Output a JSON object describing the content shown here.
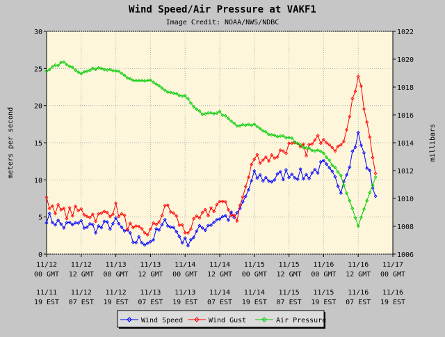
{
  "chart_data": {
    "type": "line",
    "title": "Wind Speed/Air Pressure at VAKF1",
    "subtitle": "Image Credit: NOAA/NWS/NDBC",
    "ylabel_left": "meters per second",
    "ylabel_right": "millibars",
    "left_axis": {
      "min": 0,
      "max": 30,
      "ticks": [
        "0",
        "5",
        "10",
        "15",
        "20",
        "25",
        "30"
      ]
    },
    "right_axis": {
      "min": 1006,
      "max": 1022,
      "ticks": [
        "1006",
        "1008",
        "1010",
        "1012",
        "1014",
        "1016",
        "1018",
        "1020",
        "1022"
      ]
    },
    "x_axis": {
      "start": "2023-11-12T00:00Z",
      "end": "2023-11-17T00:00Z",
      "ticks_gmt": [
        [
          "11/12",
          "00 GMT"
        ],
        [
          "11/12",
          "12 GMT"
        ],
        [
          "11/13",
          "00 GMT"
        ],
        [
          "11/13",
          "12 GMT"
        ],
        [
          "11/14",
          "00 GMT"
        ],
        [
          "11/14",
          "12 GMT"
        ],
        [
          "11/15",
          "00 GMT"
        ],
        [
          "11/15",
          "12 GMT"
        ],
        [
          "11/16",
          "00 GMT"
        ],
        [
          "11/16",
          "12 GMT"
        ],
        [
          "11/17",
          "00 GMT"
        ]
      ],
      "ticks_est": [
        [
          "11/11",
          "19 EST"
        ],
        [
          "11/12",
          "07 EST"
        ],
        [
          "11/12",
          "19 EST"
        ],
        [
          "11/13",
          "07 EST"
        ],
        [
          "11/13",
          "19 EST"
        ],
        [
          "11/14",
          "07 EST"
        ],
        [
          "11/14",
          "19 EST"
        ],
        [
          "11/15",
          "07 EST"
        ],
        [
          "11/15",
          "19 EST"
        ],
        [
          "11/16",
          "07 EST"
        ],
        [
          "11/16",
          "19 EST"
        ]
      ]
    },
    "grid": true,
    "legend_position": "bottom",
    "series": [
      {
        "name": "Wind Speed",
        "axis": "left",
        "color": "#0000ff",
        "x": [
          "11/12 00Z",
          "11/12 06Z",
          "11/12 12Z",
          "11/12 18Z",
          "11/13 00Z",
          "11/13 06Z",
          "11/13 12Z",
          "11/13 18Z",
          "11/14 00Z",
          "11/14 06Z",
          "11/14 12Z",
          "11/14 18Z",
          "11/15 00Z",
          "11/15 06Z",
          "11/15 12Z",
          "11/15 18Z",
          "11/16 00Z",
          "11/16 06Z",
          "11/16 12Z",
          "11/16 18Z"
        ],
        "values": [
          5,
          3.8,
          4,
          3.5,
          4.2,
          1.8,
          1.8,
          4.5,
          1.5,
          3.5,
          5,
          5,
          10.5,
          10,
          11,
          10.5,
          12,
          9,
          16,
          8
        ]
      },
      {
        "name": "Wind Gust",
        "axis": "left",
        "color": "#ff0000",
        "x": [
          "11/12 00Z",
          "11/12 06Z",
          "11/12 12Z",
          "11/12 18Z",
          "11/13 00Z",
          "11/13 06Z",
          "11/13 12Z",
          "11/13 18Z",
          "11/14 00Z",
          "11/14 06Z",
          "11/14 12Z",
          "11/14 18Z",
          "11/15 00Z",
          "11/15 06Z",
          "11/15 12Z",
          "11/15 18Z",
          "11/16 00Z",
          "11/16 06Z",
          "11/16 12Z",
          "11/16 18Z"
        ],
        "values": [
          7,
          5.5,
          5.8,
          5,
          6.2,
          3,
          3,
          6.5,
          3,
          5,
          7,
          5,
          13,
          13,
          14.5,
          14,
          16,
          14,
          24,
          11
        ]
      },
      {
        "name": "Air Pressure",
        "axis": "right",
        "color": "#00cc00",
        "x": [
          "11/12 00Z",
          "11/12 06Z",
          "11/12 12Z",
          "11/12 18Z",
          "11/13 00Z",
          "11/13 06Z",
          "11/13 12Z",
          "11/13 18Z",
          "11/14 00Z",
          "11/14 06Z",
          "11/14 12Z",
          "11/14 18Z",
          "11/15 00Z",
          "11/15 06Z",
          "11/15 12Z",
          "11/15 18Z",
          "11/16 00Z",
          "11/16 06Z",
          "11/16 12Z",
          "11/16 18Z"
        ],
        "values": [
          1019.2,
          1019.8,
          1019.0,
          1019.4,
          1019.2,
          1018.4,
          1018.5,
          1017.6,
          1017.3,
          1016.0,
          1016.2,
          1015.2,
          1015.3,
          1014.5,
          1014.4,
          1013.6,
          1013.3,
          1011.6,
          1008.0,
          1011.6
        ]
      }
    ]
  }
}
